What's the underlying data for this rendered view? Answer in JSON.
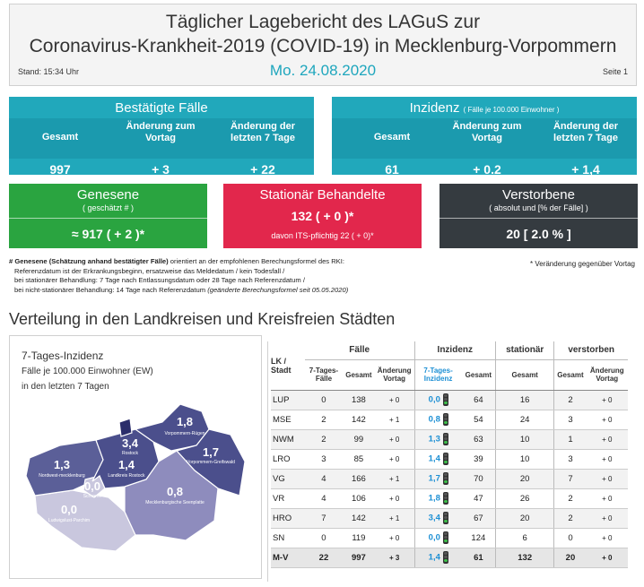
{
  "header": {
    "title_line1": "Täglicher Lagebericht des LAGuS zur",
    "title_line2": "Coronavirus-Krankheit-2019 (COVID-19) in Mecklenburg-Vorpommern",
    "stand": "Stand: 15:34 Uhr",
    "date": "Mo. 24.08.2020",
    "seite": "Seite 1"
  },
  "bestaetigte": {
    "title": "Bestätigte Fälle",
    "col1": "Gesamt",
    "col2a": "Änderung zum",
    "col2b": "Vortag",
    "col3a": "Änderung der",
    "col3b": "letzten 7 Tage",
    "v1": "997",
    "v2": "+ 3",
    "v3": "+ 22"
  },
  "inzidenz": {
    "title": "Inzidenz",
    "title_small": "( Fälle je 100.000 Einwohner )",
    "col1": "Gesamt",
    "col2a": "Änderung zum",
    "col2b": "Vortag",
    "col3a": "Änderung der",
    "col3b": "letzten 7 Tage",
    "v1": "61",
    "v2": "+ 0.2",
    "v3": "+ 1,4"
  },
  "genesene": {
    "title": "Genesene",
    "sub": "( geschätzt # )",
    "value": "≈ 917 ( + 2 )*",
    "color": "#2aa440"
  },
  "stationaer": {
    "title": "Stationär Behandelte",
    "value": "132 ( + 0 )*",
    "its": "davon ITS-pflichtig 22 ( + 0)*",
    "color": "#e2274c"
  },
  "verstorbene": {
    "title": "Verstorbene",
    "sub": "( absolut und [% der Fälle] )",
    "value": "20 [ 2.0 % ]",
    "color": "#353b40"
  },
  "notes": {
    "line1_bold": "Genesene (Schätzung anhand bestätigter Fälle)",
    "line1_rest": " orientiert an der empfohlenen Berechungsformel des RKI:",
    "line2": "Referenzdatum ist der Erkrankungsbeginn, ersatzweise das Meldedatum / kein Todesfall /",
    "line3": "bei stationärer Behandlung: 7 Tage nach Entlassungsdatum oder 28 Tage nach Referenzdatum /",
    "line4": "bei nicht-stationärer Behandlung: 14 Tage nach Referenzdatum",
    "line4_italic": "(geänderte Berechungsformel seit 05.05.2020)",
    "right": "* Veränderung gegenüber Vortag"
  },
  "section_title": "Verteilung in den Landkreisen und Kreisfreien Städten",
  "map": {
    "title": "7-Tages-Inzidenz",
    "line2": "Fälle je 100.000 Einwohner (EW)",
    "line3": "in den letzten 7 Tagen",
    "regions": [
      {
        "name": "Vorpommern-Rügen",
        "value": "1,8"
      },
      {
        "name": "Rostock",
        "value": "3,4"
      },
      {
        "name": "Nordwest-mecklenburg",
        "value": "1,3"
      },
      {
        "name": "Landkreis Rostock",
        "value": "1,4"
      },
      {
        "name": "Vorpommern-Greifswald",
        "value": "1,7"
      },
      {
        "name": "Schwerin",
        "value": "0,0"
      },
      {
        "name": "Mecklenburgische Seenplatte",
        "value": "0,8"
      },
      {
        "name": "Ludwigslust-Parchim",
        "value": "0,0"
      }
    ]
  },
  "table": {
    "h_lk": "LK /",
    "h_stadt": "Stadt",
    "g_faelle": "Fälle",
    "g_inzidenz": "Inzidenz",
    "g_stationaer": "stationär",
    "g_verstorben": "verstorben",
    "s_7tage": "7-Tages-Fälle",
    "s_gesamt": "Gesamt",
    "s_aend": "Änderung Vortag",
    "s_inz7": "7-Tages-Inzidenz",
    "s_inzges": "Gesamt",
    "s_stat": "Gesamt",
    "s_verst": "Gesamt",
    "s_verst_aend": "Änderung Vortag",
    "rows": [
      {
        "lk": "LUP",
        "f7": "0",
        "fg": "138",
        "fa": "+ 0",
        "i7": "0,0",
        "ig": "64",
        "st": "16",
        "vg": "2",
        "va": "+ 0"
      },
      {
        "lk": "MSE",
        "f7": "2",
        "fg": "142",
        "fa": "+ 1",
        "i7": "0,8",
        "ig": "54",
        "st": "24",
        "vg": "3",
        "va": "+ 0"
      },
      {
        "lk": "NWM",
        "f7": "2",
        "fg": "99",
        "fa": "+ 0",
        "i7": "1,3",
        "ig": "63",
        "st": "10",
        "vg": "1",
        "va": "+ 0"
      },
      {
        "lk": "LRO",
        "f7": "3",
        "fg": "85",
        "fa": "+ 0",
        "i7": "1,4",
        "ig": "39",
        "st": "10",
        "vg": "3",
        "va": "+ 0"
      },
      {
        "lk": "VG",
        "f7": "4",
        "fg": "166",
        "fa": "+ 1",
        "i7": "1,7",
        "ig": "70",
        "st": "20",
        "vg": "7",
        "va": "+ 0"
      },
      {
        "lk": "VR",
        "f7": "4",
        "fg": "106",
        "fa": "+ 0",
        "i7": "1,8",
        "ig": "47",
        "st": "26",
        "vg": "2",
        "va": "+ 0"
      },
      {
        "lk": "HRO",
        "f7": "7",
        "fg": "142",
        "fa": "+ 1",
        "i7": "3,4",
        "ig": "67",
        "st": "20",
        "vg": "2",
        "va": "+ 0"
      },
      {
        "lk": "SN",
        "f7": "0",
        "fg": "119",
        "fa": "+ 0",
        "i7": "0,0",
        "ig": "124",
        "st": "6",
        "vg": "0",
        "va": "+ 0"
      },
      {
        "lk": "M-V",
        "f7": "22",
        "fg": "997",
        "fa": "+ 3",
        "i7": "1,4",
        "ig": "61",
        "st": "132",
        "vg": "20",
        "va": "+ 0"
      }
    ]
  },
  "colors": {
    "teal": "#21a8bb",
    "incidence_blue": "#1c8fd4",
    "map_dark": "#4b4f8c",
    "map_light": "#c9c7de"
  }
}
